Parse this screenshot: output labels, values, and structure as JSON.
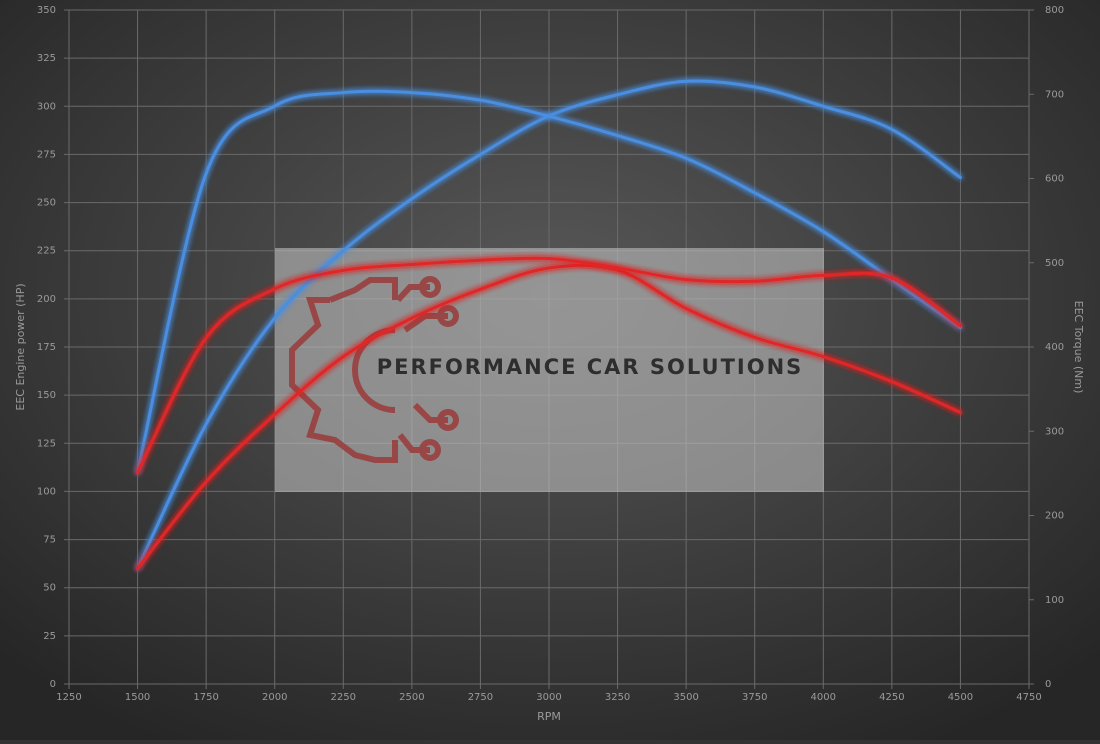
{
  "chart_data": {
    "type": "line",
    "x_label": "RPM",
    "y_label": "EEC Engine power (HP)",
    "y2_label": "EEC Torque (Nm)",
    "watermark": "PERFORMANCE CAR SOLUTIONS",
    "x": [
      1500,
      1750,
      2000,
      2250,
      2500,
      2750,
      3000,
      3250,
      3500,
      3750,
      4000,
      4250,
      4500
    ],
    "series": [
      {
        "color": "#4a8ee0",
        "axis": "y",
        "values": [
          60,
          135,
          190,
          225,
          252,
          275,
          295,
          306,
          313,
          310,
          300,
          288,
          263
        ]
      },
      {
        "color": "#4a8ee0",
        "axis": "y2",
        "values": [
          251,
          606,
          686,
          702,
          702,
          693,
          674,
          651,
          624,
          583,
          537,
          480,
          423
        ]
      },
      {
        "color": "#e02828",
        "axis": "y",
        "values": [
          60,
          105,
          140,
          170,
          190,
          205,
          216,
          215,
          195,
          180,
          170,
          157,
          141
        ]
      },
      {
        "color": "#e02828",
        "axis": "y2",
        "values": [
          251,
          411,
          469,
          491,
          498,
          503,
          505,
          494,
          480,
          478,
          485,
          482,
          425
        ]
      }
    ],
    "xlim": [
      1250,
      4750
    ],
    "xticks": [
      1250,
      1500,
      1750,
      2000,
      2250,
      2500,
      2750,
      3000,
      3250,
      3500,
      3750,
      4000,
      4250,
      4500,
      4750
    ],
    "ylim": [
      0,
      350
    ],
    "yticks": [
      0,
      25,
      50,
      75,
      100,
      125,
      150,
      175,
      200,
      225,
      250,
      275,
      300,
      325,
      350
    ],
    "y2lim": [
      0,
      800
    ],
    "y2ticks": [
      0,
      100,
      200,
      300,
      400,
      500,
      600,
      700,
      800
    ],
    "grid": true
  }
}
